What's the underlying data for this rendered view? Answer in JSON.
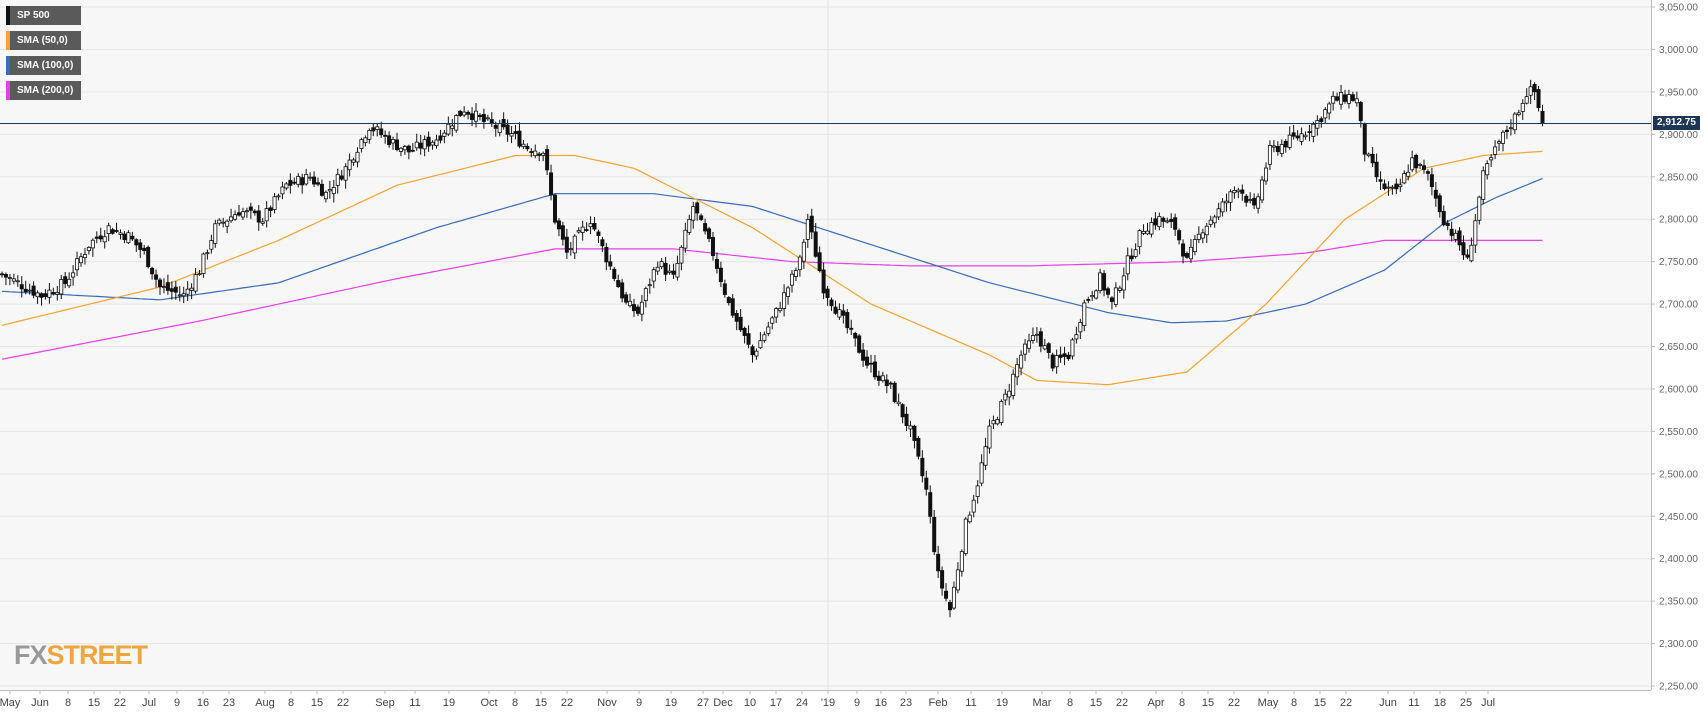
{
  "chart_data": {
    "type": "candlestick",
    "title": "",
    "xlabel": "",
    "ylabel": "",
    "ylim": [
      2250,
      3050
    ],
    "yticks": [
      "3,050.00",
      "3,000.00",
      "2,950.00",
      "2,900.00",
      "2,850.00",
      "2,800.00",
      "2,750.00",
      "2,700.00",
      "2,650.00",
      "2,600.00",
      "2,550.00",
      "2,500.00",
      "2,450.00",
      "2,400.00",
      "2,350.00",
      "2,300.00",
      "2,250.00"
    ],
    "xticks": [
      "May",
      "Jun",
      "8",
      "15",
      "22",
      "Jul",
      "9",
      "16",
      "23",
      "Aug",
      "8",
      "15",
      "22",
      "Sep",
      "11",
      "19",
      "Oct",
      "8",
      "15",
      "22",
      "Nov",
      "9",
      "19",
      "27",
      "Dec",
      "10",
      "17",
      "24",
      "'19",
      "9",
      "16",
      "23",
      "Feb",
      "11",
      "19",
      "Mar",
      "8",
      "15",
      "22",
      "Apr",
      "8",
      "15",
      "22",
      "May",
      "8",
      "15",
      "22",
      "Jun",
      "11",
      "18",
      "25",
      "Jul"
    ],
    "legend": [
      {
        "name": "SP 500",
        "color": "#111111"
      },
      {
        "name": "SMA (50,0)",
        "color": "#f7a232"
      },
      {
        "name": "SMA (100,0)",
        "color": "#3a6ab8"
      },
      {
        "name": "SMA (200,0)",
        "color": "#e83ee8"
      }
    ],
    "last_price": "2,912.75",
    "approx_close_path": [
      [
        0,
        2735
      ],
      [
        10,
        2710
      ],
      [
        16,
        2725
      ],
      [
        22,
        2770
      ],
      [
        27,
        2790
      ],
      [
        32,
        2780
      ],
      [
        36,
        2760
      ],
      [
        40,
        2720
      ],
      [
        46,
        2710
      ],
      [
        50,
        2740
      ],
      [
        54,
        2790
      ],
      [
        60,
        2810
      ],
      [
        66,
        2800
      ],
      [
        72,
        2840
      ],
      [
        78,
        2850
      ],
      [
        82,
        2830
      ],
      [
        87,
        2860
      ],
      [
        93,
        2910
      ],
      [
        99,
        2890
      ],
      [
        103,
        2880
      ],
      [
        110,
        2895
      ],
      [
        117,
        2930
      ],
      [
        122,
        2915
      ],
      [
        129,
        2900
      ],
      [
        133,
        2885
      ],
      [
        137,
        2880
      ],
      [
        140,
        2800
      ],
      [
        143,
        2760
      ],
      [
        149,
        2800
      ],
      [
        153,
        2755
      ],
      [
        158,
        2700
      ],
      [
        161,
        2690
      ],
      [
        166,
        2750
      ],
      [
        170,
        2730
      ],
      [
        175,
        2815
      ],
      [
        180,
        2760
      ],
      [
        184,
        2700
      ],
      [
        190,
        2640
      ],
      [
        196,
        2690
      ],
      [
        202,
        2750
      ],
      [
        204,
        2800
      ],
      [
        208,
        2720
      ],
      [
        213,
        2680
      ],
      [
        219,
        2630
      ],
      [
        225,
        2600
      ],
      [
        230,
        2550
      ],
      [
        234,
        2480
      ],
      [
        237,
        2380
      ],
      [
        240,
        2340
      ],
      [
        244,
        2440
      ],
      [
        247,
        2490
      ],
      [
        250,
        2550
      ],
      [
        254,
        2590
      ],
      [
        258,
        2640
      ],
      [
        262,
        2665
      ],
      [
        266,
        2630
      ],
      [
        270,
        2640
      ],
      [
        274,
        2700
      ],
      [
        278,
        2730
      ],
      [
        281,
        2700
      ],
      [
        285,
        2750
      ],
      [
        289,
        2790
      ],
      [
        293,
        2800
      ],
      [
        297,
        2790
      ],
      [
        300,
        2750
      ],
      [
        304,
        2790
      ],
      [
        308,
        2810
      ],
      [
        313,
        2840
      ],
      [
        317,
        2810
      ],
      [
        321,
        2880
      ],
      [
        325,
        2890
      ],
      [
        329,
        2900
      ],
      [
        333,
        2915
      ],
      [
        337,
        2940
      ],
      [
        341,
        2945
      ],
      [
        343,
        2940
      ],
      [
        345,
        2880
      ],
      [
        349,
        2840
      ],
      [
        353,
        2830
      ],
      [
        357,
        2870
      ],
      [
        361,
        2850
      ],
      [
        365,
        2800
      ],
      [
        369,
        2770
      ],
      [
        371,
        2750
      ],
      [
        375,
        2850
      ],
      [
        379,
        2890
      ],
      [
        383,
        2920
      ],
      [
        386,
        2950
      ],
      [
        388,
        2950
      ],
      [
        390,
        2912.75
      ]
    ],
    "sma_50": [
      [
        0,
        2675
      ],
      [
        40,
        2720
      ],
      [
        70,
        2775
      ],
      [
        100,
        2840
      ],
      [
        130,
        2875
      ],
      [
        145,
        2875
      ],
      [
        160,
        2860
      ],
      [
        190,
        2790
      ],
      [
        220,
        2700
      ],
      [
        250,
        2640
      ],
      [
        262,
        2610
      ],
      [
        280,
        2605
      ],
      [
        300,
        2620
      ],
      [
        320,
        2700
      ],
      [
        340,
        2800
      ],
      [
        360,
        2860
      ],
      [
        375,
        2875
      ],
      [
        390,
        2880
      ]
    ],
    "sma_100": [
      [
        0,
        2715
      ],
      [
        40,
        2705
      ],
      [
        70,
        2725
      ],
      [
        110,
        2790
      ],
      [
        140,
        2830
      ],
      [
        165,
        2830
      ],
      [
        190,
        2815
      ],
      [
        220,
        2770
      ],
      [
        250,
        2725
      ],
      [
        280,
        2690
      ],
      [
        296,
        2678
      ],
      [
        310,
        2680
      ],
      [
        330,
        2700
      ],
      [
        350,
        2740
      ],
      [
        365,
        2795
      ],
      [
        378,
        2825
      ],
      [
        390,
        2848
      ]
    ],
    "sma_200": [
      [
        0,
        2635
      ],
      [
        50,
        2680
      ],
      [
        100,
        2730
      ],
      [
        140,
        2765
      ],
      [
        170,
        2765
      ],
      [
        200,
        2750
      ],
      [
        230,
        2745
      ],
      [
        260,
        2745
      ],
      [
        300,
        2750
      ],
      [
        330,
        2760
      ],
      [
        350,
        2775
      ],
      [
        370,
        2775
      ],
      [
        390,
        2775
      ]
    ]
  }
}
